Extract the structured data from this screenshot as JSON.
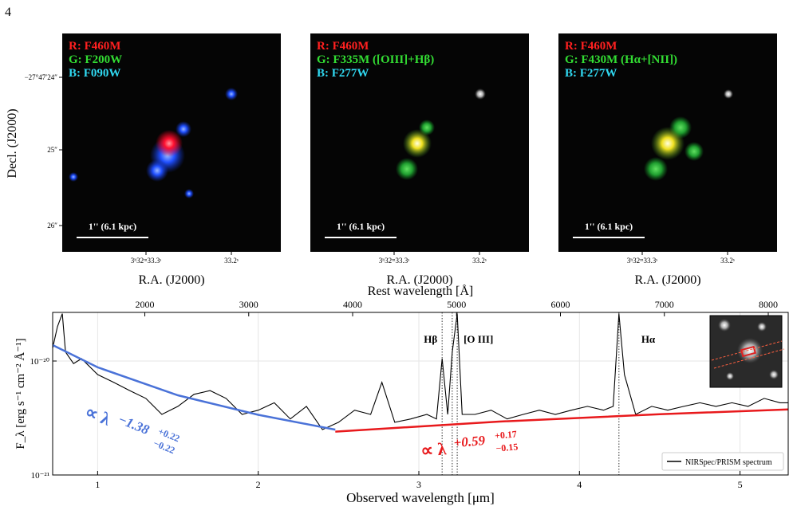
{
  "page_number": "4",
  "dec_label": "Decl. (J2000)",
  "dec_ticks": [
    "−27°47′24″",
    "25″",
    "26″"
  ],
  "panels": [
    {
      "labels": [
        "R: F460M",
        "G: F200W",
        "B: F090W"
      ],
      "scale_bar": "1'' (6.1 kpc)",
      "xticks": [
        "3ʰ32ᵐ33.3ˢ",
        "33.2ˢ"
      ],
      "xlabel": "R.A. (J2000)"
    },
    {
      "labels": [
        "R: F460M",
        "G: F335M ([OIII]+Hβ)",
        "B: F277W"
      ],
      "scale_bar": "1'' (6.1 kpc)",
      "xticks": [
        "3ʰ32ᵐ33.3ˢ",
        "33.2ˢ"
      ],
      "xlabel": "R.A. (J2000)"
    },
    {
      "labels": [
        "R: F460M",
        "G: F430M (Hα+[NII])",
        "B: F277W"
      ],
      "scale_bar": "1'' (6.1 kpc)",
      "xticks": [
        "3ʰ32ᵐ33.3ˢ",
        "33.2ˢ"
      ],
      "xlabel": "R.A. (J2000)"
    }
  ],
  "chart_data": {
    "type": "line",
    "xlabel": "Observed wavelength [μm]",
    "ylabel": "F_λ [erg s⁻¹ cm⁻² Å⁻¹]",
    "x2label": "Rest wavelength [Å]",
    "xlim": [
      0.72,
      5.3
    ],
    "xticks": [
      1,
      2,
      3,
      4,
      5
    ],
    "x2lim": [
      1113,
      8192
    ],
    "x2ticks": [
      2000,
      3000,
      4000,
      5000,
      6000,
      7000,
      8000
    ],
    "ylog": true,
    "ylim": [
      1e-21,
      2.67e-20
    ],
    "yticks": [
      {
        "value": 1e-21,
        "label": "10⁻²¹"
      },
      {
        "value": 1e-20,
        "label": "10⁻²⁰"
      }
    ],
    "grid": true,
    "legend": "lower right",
    "x": [
      0.72,
      0.75,
      0.78,
      0.8,
      0.85,
      0.9,
      1.0,
      1.1,
      1.2,
      1.3,
      1.4,
      1.5,
      1.6,
      1.7,
      1.8,
      1.9,
      2.0,
      2.1,
      2.2,
      2.3,
      2.4,
      2.5,
      2.6,
      2.7,
      2.77,
      2.85,
      2.95,
      3.05,
      3.11,
      3.145,
      3.18,
      3.208,
      3.239,
      3.27,
      3.35,
      3.45,
      3.55,
      3.65,
      3.75,
      3.85,
      3.95,
      4.05,
      4.15,
      4.21,
      4.246,
      4.28,
      4.35,
      4.45,
      4.55,
      4.65,
      4.75,
      4.85,
      4.95,
      5.05,
      5.15,
      5.25,
      5.3
    ],
    "series": [
      {
        "name": "NIRSpec/PRISM spectrum",
        "color": "#000000",
        "values": [
          1.3e-20,
          2e-20,
          2.6e-20,
          1.2e-20,
          9.5e-21,
          1.05e-20,
          7.6e-21,
          6.5e-21,
          5.5e-21,
          4.7e-21,
          3.4e-21,
          4e-21,
          5.1e-21,
          5.5e-21,
          4.7e-21,
          3.4e-21,
          3.7e-21,
          4.3e-21,
          3.1e-21,
          4e-21,
          2.5e-21,
          2.9e-21,
          3.7e-21,
          3.4e-21,
          6.5e-21,
          2.9e-21,
          3.1e-21,
          3.4e-21,
          3.1e-21,
          1.05e-20,
          3.4e-21,
          1.2e-20,
          2.6e-20,
          3.4e-21,
          3.4e-21,
          3.7e-21,
          3.1e-21,
          3.4e-21,
          3.7e-21,
          3.4e-21,
          3.7e-21,
          4e-21,
          3.7e-21,
          4e-21,
          2.6e-20,
          7.6e-21,
          3.4e-21,
          4e-21,
          3.7e-21,
          4e-21,
          4.3e-21,
          4e-21,
          4.3e-21,
          4e-21,
          4.7e-21,
          4.3e-21,
          4.3e-21
        ]
      }
    ],
    "fits": [
      {
        "color": "#4a72d8",
        "x": [
          0.72,
          1.0,
          1.5,
          2.0,
          2.48
        ],
        "values": [
          1.38e-20,
          8.8e-21,
          5e-21,
          3.37e-21,
          2.5e-21
        ],
        "text": "∝ λ",
        "exponent": "−1.38",
        "upper": "+0.22",
        "lower": "−0.22"
      },
      {
        "color": "#e8191c",
        "x": [
          2.48,
          3.5,
          4.5,
          5.3
        ],
        "values": [
          2.4e-21,
          2.94e-21,
          3.41e-21,
          3.76e-21
        ],
        "text": "∝ λ",
        "exponent": "+0.59",
        "upper": "+0.17",
        "lower": "−0.15"
      }
    ],
    "line_markers": [
      3.145,
      3.208,
      3.239,
      4.246
    ],
    "line_labels": [
      "Hβ",
      "[O III]",
      "Hα"
    ]
  }
}
